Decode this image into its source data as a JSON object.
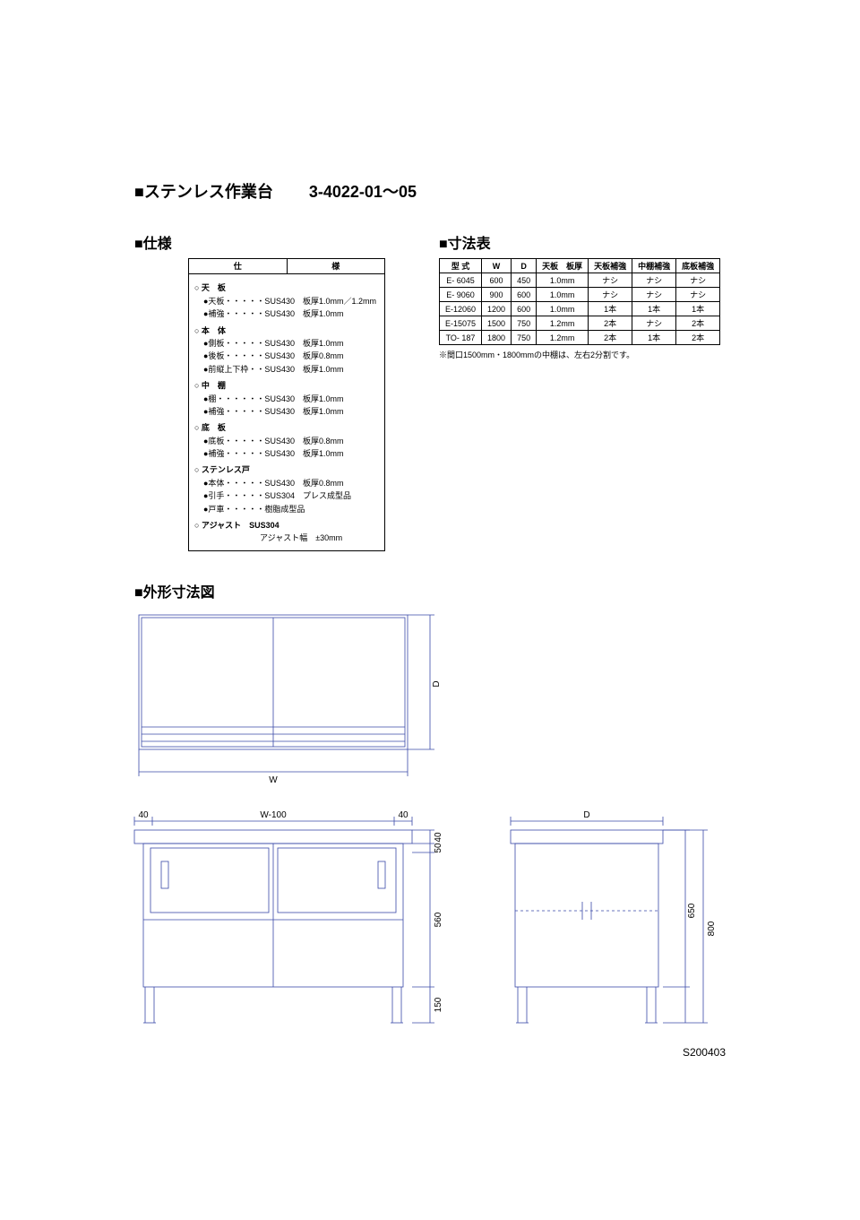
{
  "title": {
    "main": "■ステンレス作業台",
    "code": "3-4022-01～05"
  },
  "spec": {
    "heading": "■仕様",
    "cols": [
      "仕",
      "様"
    ],
    "groups": [
      {
        "h": "○ 天　板",
        "lines": [
          "●天板・・・・・SUS430　板厚1.0mm／1.2mm",
          "●補強・・・・・SUS430　板厚1.0mm"
        ]
      },
      {
        "h": "○ 本　体",
        "lines": [
          "●側板・・・・・SUS430　板厚1.0mm",
          "●後板・・・・・SUS430　板厚0.8mm",
          "●前縦上下枠・・SUS430　板厚1.0mm"
        ]
      },
      {
        "h": "○ 中　棚",
        "lines": [
          "●棚・・・・・・SUS430　板厚1.0mm",
          "●補強・・・・・SUS430　板厚1.0mm"
        ]
      },
      {
        "h": "○ 底　板",
        "lines": [
          "●底板・・・・・SUS430　板厚0.8mm",
          "●補強・・・・・SUS430　板厚1.0mm"
        ]
      },
      {
        "h": "○ ステンレス戸",
        "lines": [
          "●本体・・・・・SUS430　板厚0.8mm",
          "●引手・・・・・SUS304　プレス成型品",
          "●戸車・・・・・樹脂成型品"
        ]
      },
      {
        "h": "○ アジャスト　SUS304",
        "lines": [
          "　　　　　　　アジャスト幅　±30mm"
        ]
      }
    ]
  },
  "dim": {
    "heading": "■寸法表",
    "cols": [
      "型 式",
      "W",
      "D",
      "天板　板厚",
      "天板補強",
      "中棚補強",
      "底板補強"
    ],
    "rows": [
      [
        "E- 6045",
        "600",
        "450",
        "1.0mm",
        "ナシ",
        "ナシ",
        "ナシ"
      ],
      [
        "E- 9060",
        "900",
        "600",
        "1.0mm",
        "ナシ",
        "ナシ",
        "ナシ"
      ],
      [
        "E-12060",
        "1200",
        "600",
        "1.0mm",
        "1本",
        "1本",
        "1本"
      ],
      [
        "E-15075",
        "1500",
        "750",
        "1.2mm",
        "2本",
        "ナシ",
        "2本"
      ],
      [
        "TO- 187",
        "1800",
        "750",
        "1.2mm",
        "2本",
        "1本",
        "2本"
      ]
    ],
    "note": "※間口1500mm・1800mmの中棚は、左右2分割です。"
  },
  "draw": {
    "heading": "■外形寸法図",
    "labels": {
      "w": "W",
      "d": "D",
      "w100": "W-100",
      "s40": "40",
      "h40": "40",
      "h50": "50",
      "h560": "560",
      "h150": "150",
      "h650": "650",
      "h800": "800"
    }
  },
  "footer": "S200403"
}
